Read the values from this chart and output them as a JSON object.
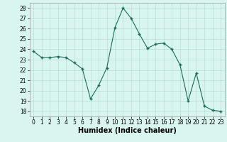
{
  "x": [
    0,
    1,
    2,
    3,
    4,
    5,
    6,
    7,
    8,
    9,
    10,
    11,
    12,
    13,
    14,
    15,
    16,
    17,
    18,
    19,
    20,
    21,
    22,
    23
  ],
  "y": [
    23.8,
    23.2,
    23.2,
    23.3,
    23.2,
    22.7,
    22.1,
    19.2,
    20.5,
    22.2,
    26.1,
    28.0,
    27.0,
    25.5,
    24.1,
    24.5,
    24.6,
    24.0,
    22.5,
    19.0,
    21.7,
    18.5,
    18.1,
    18.0
  ],
  "line_color": "#1a6b5a",
  "marker_color": "#1a6b5a",
  "bg_color": "#d8f5f0",
  "grid_color": "#b8ddd8",
  "xlabel": "Humidex (Indice chaleur)",
  "ylim": [
    17.5,
    28.5
  ],
  "xlim": [
    -0.5,
    23.5
  ],
  "yticks": [
    18,
    19,
    20,
    21,
    22,
    23,
    24,
    25,
    26,
    27,
    28
  ],
  "xticks": [
    0,
    1,
    2,
    3,
    4,
    5,
    6,
    7,
    8,
    9,
    10,
    11,
    12,
    13,
    14,
    15,
    16,
    17,
    18,
    19,
    20,
    21,
    22,
    23
  ],
  "tick_fontsize": 5.5,
  "xlabel_fontsize": 7.0
}
